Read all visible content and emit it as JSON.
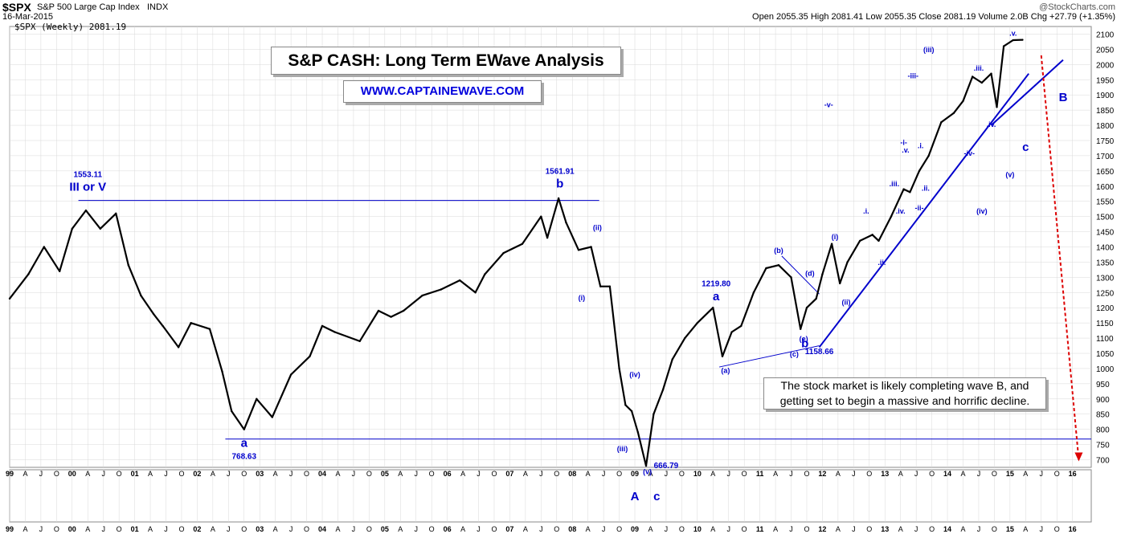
{
  "header": {
    "symbol": "$SPX",
    "name": "S&P 500 Large Cap Index",
    "exchange": "INDX",
    "date": "16-Mar-2015",
    "brand": "@StockCharts.com",
    "ohlc_text": "Open 2055.35  High 2081.41  Low 2055.35  Close 2081.19  Volume 2.0B  Chg +27.79 (+1.35%)",
    "legend": "$SPX (Weekly) 2081.19"
  },
  "title_box": "S&P CASH: Long Term EWave Analysis",
  "url_box": "WWW.CAPTAINEWAVE.COM",
  "note_box": "The stock market is likely completing wave B, and getting set to begin a massive and horrific decline.",
  "colors": {
    "price": "#000000",
    "annotation": "#0000cc",
    "forecast": "#dd0000",
    "grid": "#d8d8d8"
  },
  "chart_data": {
    "type": "line",
    "title": "$SPX (Weekly) 2081.19",
    "ylim": [
      675,
      2125
    ],
    "y_ticks": [
      700,
      750,
      800,
      850,
      900,
      950,
      1000,
      1050,
      1100,
      1150,
      1200,
      1250,
      1300,
      1350,
      1400,
      1450,
      1500,
      1550,
      1600,
      1650,
      1700,
      1750,
      1800,
      1850,
      1900,
      1950,
      2000,
      2050,
      2100
    ],
    "x_range": [
      1999.0,
      2016.3
    ],
    "x_tick_labels": [
      "99",
      "A",
      "J",
      "O",
      "00",
      "A",
      "J",
      "O",
      "01",
      "A",
      "J",
      "O",
      "02",
      "A",
      "J",
      "O",
      "03",
      "A",
      "J",
      "O",
      "04",
      "A",
      "J",
      "O",
      "05",
      "A",
      "J",
      "O",
      "06",
      "A",
      "J",
      "O",
      "07",
      "A",
      "J",
      "O",
      "08",
      "A",
      "J",
      "O",
      "09",
      "A",
      "J",
      "O",
      "10",
      "A",
      "J",
      "O",
      "11",
      "A",
      "J",
      "O",
      "12",
      "A",
      "J",
      "O",
      "13",
      "A",
      "J",
      "O",
      "14",
      "A",
      "J",
      "O",
      "15",
      "A",
      "J",
      "O",
      "16"
    ],
    "series": [
      {
        "x": [
          1999.0,
          1999.3,
          1999.55,
          1999.8,
          2000.0,
          2000.22,
          2000.45,
          2000.7,
          2000.9,
          2001.1,
          2001.3,
          2001.45,
          2001.7,
          2001.9,
          2002.2,
          2002.4,
          2002.55,
          2002.75,
          2002.95,
          2003.2,
          2003.5,
          2003.8,
          2004.0,
          2004.2,
          2004.6,
          2004.9,
          2005.1,
          2005.3,
          2005.6,
          2005.9,
          2006.2,
          2006.45,
          2006.6,
          2006.9,
          2007.2,
          2007.5,
          2007.6,
          2007.78,
          2007.9,
          2008.1,
          2008.3,
          2008.45,
          2008.6,
          2008.75,
          2008.85,
          2008.95,
          2009.05,
          2009.18,
          2009.3,
          2009.45,
          2009.6,
          2009.8,
          2010.0,
          2010.25,
          2010.4,
          2010.55,
          2010.7,
          2010.9,
          2011.1,
          2011.3,
          2011.5,
          2011.65,
          2011.75,
          2011.9,
          2012.0,
          2012.15,
          2012.28,
          2012.4,
          2012.6,
          2012.8,
          2012.9,
          2013.1,
          2013.3,
          2013.4,
          2013.55,
          2013.7,
          2013.9,
          2014.1,
          2014.25,
          2014.4,
          2014.55,
          2014.7,
          2014.79,
          2014.9,
          2015.05,
          2015.2
        ],
        "values": [
          1230,
          1310,
          1400,
          1320,
          1460,
          1520,
          1460,
          1510,
          1340,
          1240,
          1180,
          1140,
          1070,
          1150,
          1130,
          990,
          860,
          800,
          900,
          840,
          980,
          1040,
          1140,
          1120,
          1090,
          1190,
          1170,
          1190,
          1240,
          1260,
          1290,
          1250,
          1310,
          1380,
          1410,
          1500,
          1430,
          1560,
          1480,
          1390,
          1400,
          1270,
          1270,
          1000,
          880,
          860,
          790,
          680,
          850,
          930,
          1030,
          1100,
          1150,
          1200,
          1040,
          1120,
          1140,
          1250,
          1330,
          1340,
          1300,
          1130,
          1200,
          1230,
          1310,
          1410,
          1280,
          1350,
          1420,
          1440,
          1420,
          1500,
          1590,
          1580,
          1650,
          1700,
          1810,
          1840,
          1880,
          1960,
          1940,
          1970,
          1860,
          2060,
          2080,
          2081.19
        ]
      }
    ],
    "annotations": [
      {
        "text": "1553.11",
        "x": 2000.25,
        "y": 1630,
        "style": "small"
      },
      {
        "text": "III or V",
        "x": 2000.25,
        "y": 1585,
        "style": "big"
      },
      {
        "text": "1561.91",
        "x": 2007.8,
        "y": 1640,
        "style": "small"
      },
      {
        "text": "b",
        "x": 2007.8,
        "y": 1595,
        "style": "big"
      },
      {
        "text": "a",
        "x": 2002.75,
        "y": 742,
        "style": "big"
      },
      {
        "text": "768.63",
        "x": 2002.75,
        "y": 703,
        "style": "small"
      },
      {
        "text": "1219.80",
        "x": 2010.3,
        "y": 1270,
        "style": "small"
      },
      {
        "text": "a",
        "x": 2010.3,
        "y": 1225,
        "style": "big"
      },
      {
        "text": "(ii)",
        "x": 2008.4,
        "y": 1455,
        "style": "mid"
      },
      {
        "text": "(i)",
        "x": 2008.15,
        "y": 1225,
        "style": "mid"
      },
      {
        "text": "(iv)",
        "x": 2009.0,
        "y": 972,
        "style": "mid"
      },
      {
        "text": "(iii)",
        "x": 2008.8,
        "y": 728,
        "style": "mid"
      },
      {
        "text": "(v)",
        "x": 2009.2,
        "y": 652,
        "style": "mid"
      },
      {
        "text": "666.79",
        "x": 2009.5,
        "y": 673,
        "style": "small"
      },
      {
        "text": "(a)",
        "x": 2010.45,
        "y": 985,
        "style": "mid"
      },
      {
        "text": "(b)",
        "x": 2011.3,
        "y": 1380,
        "style": "mid"
      },
      {
        "text": "(d)",
        "x": 2011.8,
        "y": 1305,
        "style": "mid"
      },
      {
        "text": "(e)",
        "x": 2011.7,
        "y": 1090,
        "style": "mid"
      },
      {
        "text": "b",
        "x": 2011.72,
        "y": 1070,
        "style": "big"
      },
      {
        "text": "(c)",
        "x": 2011.55,
        "y": 1040,
        "style": "mid"
      },
      {
        "text": "1158.66",
        "x": 2011.95,
        "y": 1048,
        "style": "small"
      },
      {
        "text": "(i)",
        "x": 2012.2,
        "y": 1425,
        "style": "mid"
      },
      {
        "text": "(ii)",
        "x": 2012.38,
        "y": 1210,
        "style": "mid"
      },
      {
        "text": "-v-",
        "x": 2012.1,
        "y": 1860,
        "style": "mid"
      },
      {
        "text": ".i.",
        "x": 2012.7,
        "y": 1510,
        "style": "mid"
      },
      {
        "text": ".ii.",
        "x": 2012.95,
        "y": 1340,
        "style": "mid"
      },
      {
        "text": ".iii.",
        "x": 2013.15,
        "y": 1600,
        "style": "mid"
      },
      {
        "text": ".iv.",
        "x": 2013.25,
        "y": 1510,
        "style": "mid"
      },
      {
        "text": "-i-",
        "x": 2013.3,
        "y": 1735,
        "style": "mid"
      },
      {
        "text": ".v.",
        "x": 2013.33,
        "y": 1710,
        "style": "mid"
      },
      {
        "text": ".i.",
        "x": 2013.57,
        "y": 1725,
        "style": "mid"
      },
      {
        "text": ".ii.",
        "x": 2013.65,
        "y": 1585,
        "style": "mid"
      },
      {
        "text": "-ii-",
        "x": 2013.55,
        "y": 1520,
        "style": "mid"
      },
      {
        "text": "(iii)",
        "x": 2013.7,
        "y": 2040,
        "style": "mid"
      },
      {
        "text": "-iii-",
        "x": 2013.45,
        "y": 1955,
        "style": "mid"
      },
      {
        "text": ".iii.",
        "x": 2014.5,
        "y": 1980,
        "style": "mid"
      },
      {
        "text": "-iv-",
        "x": 2014.35,
        "y": 1700,
        "style": "mid"
      },
      {
        "text": ".iv.",
        "x": 2014.7,
        "y": 1795,
        "style": "mid"
      },
      {
        "text": "(iv)",
        "x": 2014.55,
        "y": 1510,
        "style": "mid"
      },
      {
        "text": "(v)",
        "x": 2015.0,
        "y": 1630,
        "style": "mid"
      },
      {
        "text": ".v.",
        "x": 2015.05,
        "y": 2095,
        "style": "mid"
      },
      {
        "text": "c",
        "x": 2015.25,
        "y": 1715,
        "style": "big"
      },
      {
        "text": "B",
        "x": 2015.85,
        "y": 1880,
        "style": "big"
      }
    ],
    "below_labels": [
      {
        "text": "A",
        "x": 2009.0
      },
      {
        "text": "c",
        "x": 2009.35
      }
    ],
    "lines": [
      {
        "x1": 2000.1,
        "y1": 1553,
        "x2": 2008.43,
        "y2": 1553,
        "color": "#0000cc",
        "width": 1
      },
      {
        "x1": 2002.45,
        "y1": 768,
        "x2": 2016.3,
        "y2": 768,
        "color": "#0000cc",
        "width": 1
      },
      {
        "x1": 2010.35,
        "y1": 1005,
        "x2": 2011.95,
        "y2": 1075,
        "color": "#0000cc",
        "width": 1
      },
      {
        "x1": 2011.35,
        "y1": 1370,
        "x2": 2011.95,
        "y2": 1245,
        "color": "#0000cc",
        "width": 1
      },
      {
        "x1": 2011.95,
        "y1": 1070,
        "x2": 2015.3,
        "y2": 1970,
        "color": "#0000cc",
        "width": 2
      },
      {
        "x1": 2014.7,
        "y1": 1800,
        "x2": 2015.85,
        "y2": 2015,
        "color": "#0000cc",
        "width": 2
      }
    ],
    "forecast": {
      "x1": 2015.5,
      "y1": 2030,
      "x2": 2016.1,
      "y2": 700
    }
  }
}
